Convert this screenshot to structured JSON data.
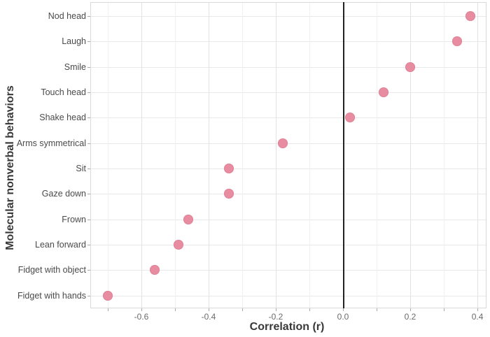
{
  "chart_data": {
    "type": "scatter",
    "variant": "horizontal-dot-plot",
    "xlabel": "Correlation (r)",
    "ylabel": "Molecular nonverbal behaviors",
    "categories": [
      "Nod head",
      "Laugh",
      "Smile",
      "Touch head",
      "Shake head",
      "Arms symmetrical",
      "Sit",
      "Gaze down",
      "Frown",
      "Lean forward",
      "Fidget with object",
      "Fidget with hands"
    ],
    "values": [
      0.38,
      0.34,
      0.2,
      0.12,
      0.02,
      -0.18,
      -0.34,
      -0.34,
      -0.46,
      -0.49,
      -0.56,
      -0.7
    ],
    "xlim": [
      -0.752,
      0.427
    ],
    "x_major_ticks": [
      -0.6,
      -0.4,
      -0.2,
      0.0,
      0.2,
      0.4
    ],
    "x_tick_labels": [
      "-0.6",
      "-0.4",
      "-0.2",
      "0.0",
      "0.2",
      "0.4"
    ],
    "x_minor_ticks": [
      -0.7,
      -0.5,
      -0.3,
      -0.1,
      0.1,
      0.3
    ],
    "zero_line_x": 0,
    "grid": true,
    "legend": false,
    "colors": {
      "point": "#e88da1",
      "point_edge": "#e28298",
      "grid_major": "#e3e3e3",
      "grid_minor": "#f1f1f1",
      "grid_horizontal": "#e8e8e8",
      "panel_border": "#d9d9d9",
      "zero_line": "#222222",
      "tick_mark": "#a9a9a9",
      "tick_label_text": "#6b6b6b",
      "category_text": "#4a4a4a",
      "axis_title_text": "#383838",
      "background": "#ffffff"
    }
  }
}
